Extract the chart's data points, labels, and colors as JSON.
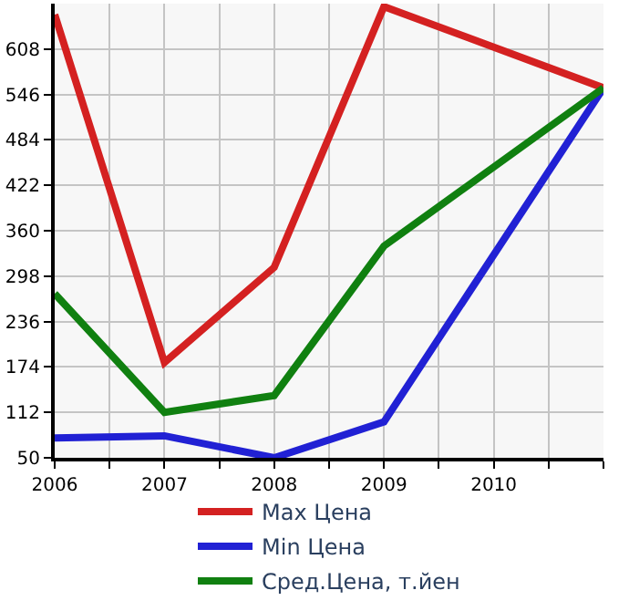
{
  "chart_data": {
    "type": "line",
    "x": [
      2006,
      2007,
      2008,
      2009,
      2011
    ],
    "series": [
      {
        "name": "Max Цена",
        "color": "#d42121",
        "values": [
          655,
          180,
          310,
          666,
          555
        ]
      },
      {
        "name": "Min Цена",
        "color": "#2121d4",
        "values": [
          77,
          80,
          50,
          99,
          555
        ]
      },
      {
        "name": "Сред.Цена, т.йен",
        "color": "#108010",
        "values": [
          274,
          112,
          135,
          339,
          555
        ]
      }
    ],
    "xlim": [
      2006,
      2011
    ],
    "xticks": [
      2006,
      {
        "value": 2006.5,
        "label": null
      },
      2007,
      {
        "value": 2007.5,
        "label": null
      },
      2008,
      {
        "value": 2008.5,
        "label": null
      },
      2009,
      {
        "value": 2009.5,
        "label": null
      },
      2010,
      {
        "value": 2010.5,
        "label": null
      },
      {
        "value": 2011,
        "label": null
      }
    ],
    "ylim": [
      50,
      670
    ],
    "yticks": [
      50,
      112,
      174,
      236,
      298,
      360,
      422,
      484,
      546,
      608
    ],
    "grid": true,
    "legend": "bottom",
    "marker": "none",
    "line_style": "solid"
  }
}
